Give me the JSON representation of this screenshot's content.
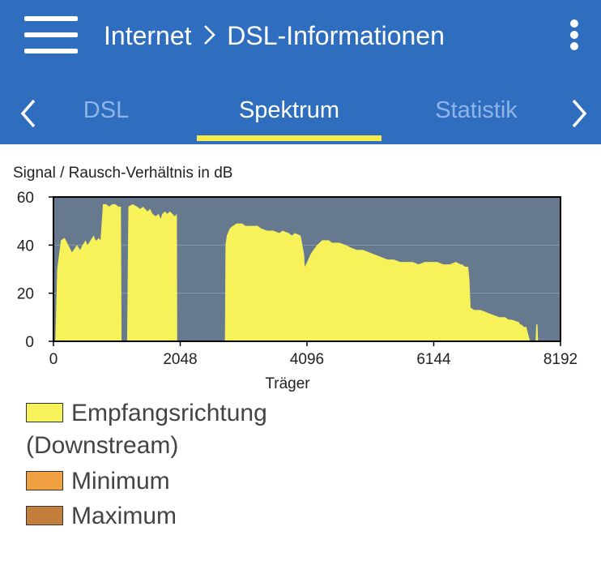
{
  "header": {
    "crumb_parent": "Internet",
    "crumb_current": "DSL-Informationen",
    "icons": {
      "menu": "hamburger-menu-icon",
      "more": "more-vertical-icon"
    },
    "background_color": "#2f6ebf"
  },
  "tabs": {
    "items": [
      {
        "label": "DSL",
        "active": false
      },
      {
        "label": "Spektrum",
        "active": true
      },
      {
        "label": "Statistik",
        "active": false
      }
    ],
    "indicator_color": "#f7ec4a"
  },
  "chart_title": "Signal / Rausch-Verhältnis in dB",
  "chart_data": {
    "type": "area",
    "title": "Signal / Rausch-Verhältnis in dB",
    "xlabel": "Träger",
    "ylabel": "",
    "xlim": [
      0,
      8192
    ],
    "ylim": [
      0,
      60
    ],
    "xticks": [
      0,
      2048,
      4096,
      6144,
      8192
    ],
    "yticks": [
      0,
      20,
      40,
      60
    ],
    "grid": true,
    "plot_background": "#66798e",
    "series": [
      {
        "name": "Empfangsrichtung (Downstream)",
        "color": "#f7f15a",
        "segments": [
          [
            [
              30,
              0
            ],
            [
              60,
              30
            ],
            [
              120,
              42
            ],
            [
              180,
              43
            ],
            [
              240,
              40
            ],
            [
              300,
              37
            ],
            [
              380,
              40
            ],
            [
              430,
              38
            ],
            [
              470,
              40
            ],
            [
              520,
              42
            ],
            [
              550,
              40
            ],
            [
              600,
              42
            ],
            [
              650,
              44
            ],
            [
              680,
              42
            ],
            [
              700,
              42
            ],
            [
              730,
              43
            ],
            [
              760,
              42
            ],
            [
              800,
              57
            ],
            [
              850,
              57
            ],
            [
              900,
              56
            ],
            [
              950,
              57
            ],
            [
              1000,
              57
            ],
            [
              1050,
              56
            ],
            [
              1090,
              56
            ],
            [
              1100,
              0
            ]
          ],
          [
            [
              1190,
              0
            ],
            [
              1210,
              56
            ],
            [
              1280,
              57
            ],
            [
              1350,
              56
            ],
            [
              1400,
              55
            ],
            [
              1450,
              56
            ],
            [
              1480,
              55
            ],
            [
              1520,
              54
            ],
            [
              1560,
              55
            ],
            [
              1600,
              53
            ],
            [
              1650,
              52
            ],
            [
              1700,
              53
            ],
            [
              1730,
              51
            ],
            [
              1760,
              53
            ],
            [
              1800,
              54
            ],
            [
              1840,
              53
            ],
            [
              1880,
              54
            ],
            [
              1920,
              53
            ],
            [
              1960,
              52
            ],
            [
              1995,
              53
            ],
            [
              2000,
              0
            ]
          ],
          [
            [
              2770,
              0
            ],
            [
              2780,
              40
            ],
            [
              2800,
              44
            ],
            [
              2850,
              47
            ],
            [
              2900,
              48
            ],
            [
              2960,
              49
            ],
            [
              3050,
              49
            ],
            [
              3100,
              48
            ],
            [
              3200,
              48
            ],
            [
              3300,
              48
            ],
            [
              3350,
              47
            ],
            [
              3450,
              46
            ],
            [
              3550,
              46
            ],
            [
              3650,
              45
            ],
            [
              3700,
              46
            ],
            [
              3800,
              45
            ],
            [
              3850,
              44
            ],
            [
              3900,
              45
            ],
            [
              3990,
              44
            ],
            [
              4000,
              43
            ],
            [
              4050,
              36
            ],
            [
              4060,
              31
            ],
            [
              4100,
              33
            ],
            [
              4150,
              36
            ],
            [
              4200,
              38
            ],
            [
              4260,
              40
            ],
            [
              4300,
              41
            ],
            [
              4340,
              42
            ],
            [
              4450,
              42
            ],
            [
              4500,
              41
            ],
            [
              4620,
              41
            ],
            [
              4720,
              40
            ],
            [
              4800,
              39
            ],
            [
              4900,
              38
            ],
            [
              5000,
              38
            ],
            [
              5100,
              37
            ],
            [
              5200,
              36
            ],
            [
              5300,
              35
            ],
            [
              5400,
              34
            ],
            [
              5500,
              34
            ],
            [
              5600,
              33
            ],
            [
              5700,
              33
            ],
            [
              5800,
              33
            ],
            [
              5900,
              32
            ],
            [
              6000,
              33
            ],
            [
              6200,
              33
            ],
            [
              6300,
              32
            ],
            [
              6400,
              32
            ],
            [
              6500,
              33
            ],
            [
              6580,
              32
            ],
            [
              6600,
              32
            ],
            [
              6650,
              31
            ],
            [
              6700,
              31
            ],
            [
              6720,
              26
            ],
            [
              6740,
              14
            ],
            [
              6800,
              13
            ],
            [
              6900,
              13
            ],
            [
              7000,
              12
            ],
            [
              7100,
              11
            ],
            [
              7200,
              10
            ],
            [
              7300,
              10
            ],
            [
              7350,
              9
            ],
            [
              7400,
              9
            ],
            [
              7520,
              8
            ],
            [
              7540,
              7
            ],
            [
              7560,
              7
            ],
            [
              7600,
              6
            ],
            [
              7640,
              6
            ],
            [
              7660,
              4
            ],
            [
              7700,
              0
            ]
          ],
          [
            [
              7790,
              0
            ],
            [
              7800,
              7
            ],
            [
              7820,
              7
            ],
            [
              7830,
              0
            ]
          ]
        ]
      }
    ],
    "legend": [
      {
        "name": "Empfangsrichtung",
        "name_cont": "(Downstream)",
        "color": "#f7f15a"
      },
      {
        "name": "Minimum",
        "color": "#f0a040"
      },
      {
        "name": "Maximum",
        "color": "#c47e3c"
      }
    ]
  }
}
